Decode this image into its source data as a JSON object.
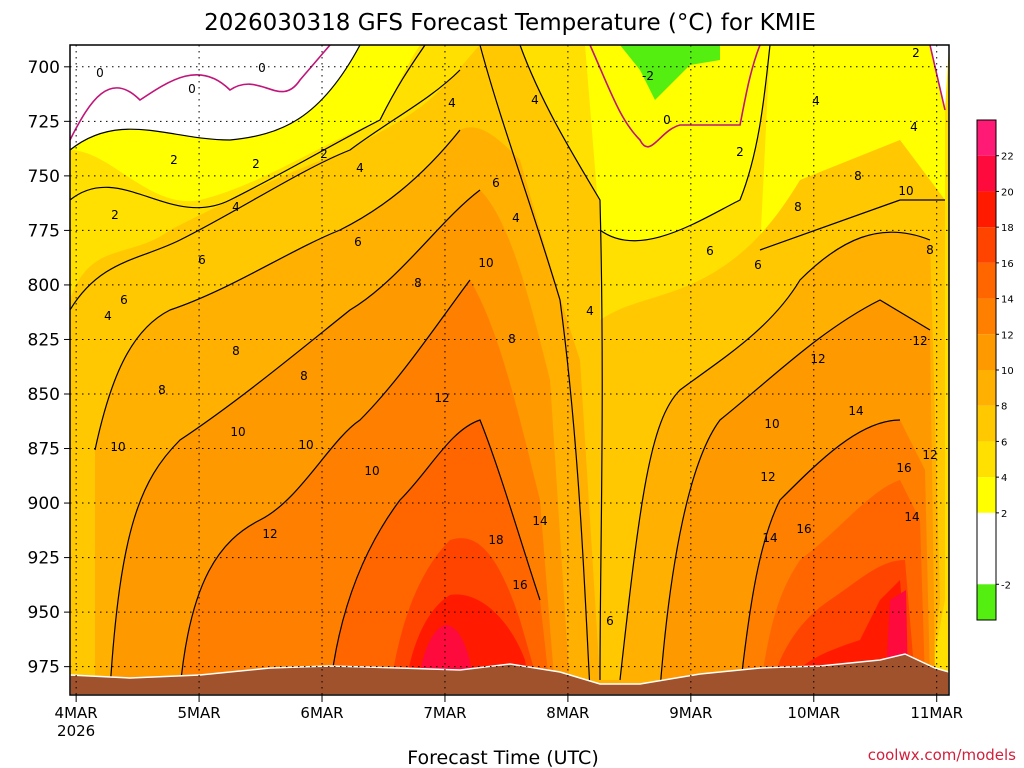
{
  "chart_data": {
    "type": "heatmap",
    "title": "2026030318 GFS Forecast Temperature (°C) for KMIE",
    "xlabel": "Forecast Time (UTC)",
    "ylabel": "",
    "credit": "coolwx.com/models",
    "y_ticks": [
      "700",
      "725",
      "750",
      "775",
      "800",
      "825",
      "850",
      "875",
      "900",
      "925",
      "950",
      "975"
    ],
    "ylim": [
      988,
      690
    ],
    "x_ticks": [
      {
        "label": "4MAR",
        "sub": "2026",
        "day": 4
      },
      {
        "label": "5MAR",
        "sub": "",
        "day": 5
      },
      {
        "label": "6MAR",
        "sub": "",
        "day": 6
      },
      {
        "label": "7MAR",
        "sub": "",
        "day": 7
      },
      {
        "label": "8MAR",
        "sub": "",
        "day": 8
      },
      {
        "label": "9MAR",
        "sub": "",
        "day": 9
      },
      {
        "label": "10MAR",
        "sub": "",
        "day": 10
      },
      {
        "label": "11MAR",
        "sub": "",
        "day": 11
      }
    ],
    "xlim": [
      3.95,
      11.1
    ],
    "colorbar": {
      "labels": [
        "22",
        "20",
        "18",
        "16",
        "14",
        "12",
        "10",
        "8",
        "6",
        "4",
        "2",
        "-2"
      ],
      "colors": [
        "#ff1a75",
        "#ff0a3c",
        "#ff1a00",
        "#ff4400",
        "#ff6600",
        "#ff8000",
        "#ff9900",
        "#ffb000",
        "#ffc800",
        "#ffe000",
        "#ffff00",
        "#ffffff",
        "#55ee11"
      ],
      "bounds": [
        24,
        22,
        20,
        18,
        16,
        14,
        12,
        10,
        8,
        6,
        4,
        2,
        -2,
        -4
      ]
    },
    "contour_labels": [
      "-2",
      "0",
      "0",
      "0",
      "0",
      "2",
      "2",
      "2",
      "2",
      "2",
      "2",
      "4",
      "4",
      "4",
      "4",
      "4",
      "4",
      "4",
      "4",
      "4",
      "6",
      "6",
      "6",
      "6",
      "6",
      "6",
      "6",
      "8",
      "8",
      "8",
      "8",
      "8",
      "8",
      "8",
      "8",
      "10",
      "10",
      "10",
      "10",
      "10",
      "10",
      "10",
      "12",
      "12",
      "12",
      "12",
      "12",
      "12",
      "14",
      "14",
      "14",
      "14",
      "16",
      "16",
      "16",
      "18"
    ]
  }
}
